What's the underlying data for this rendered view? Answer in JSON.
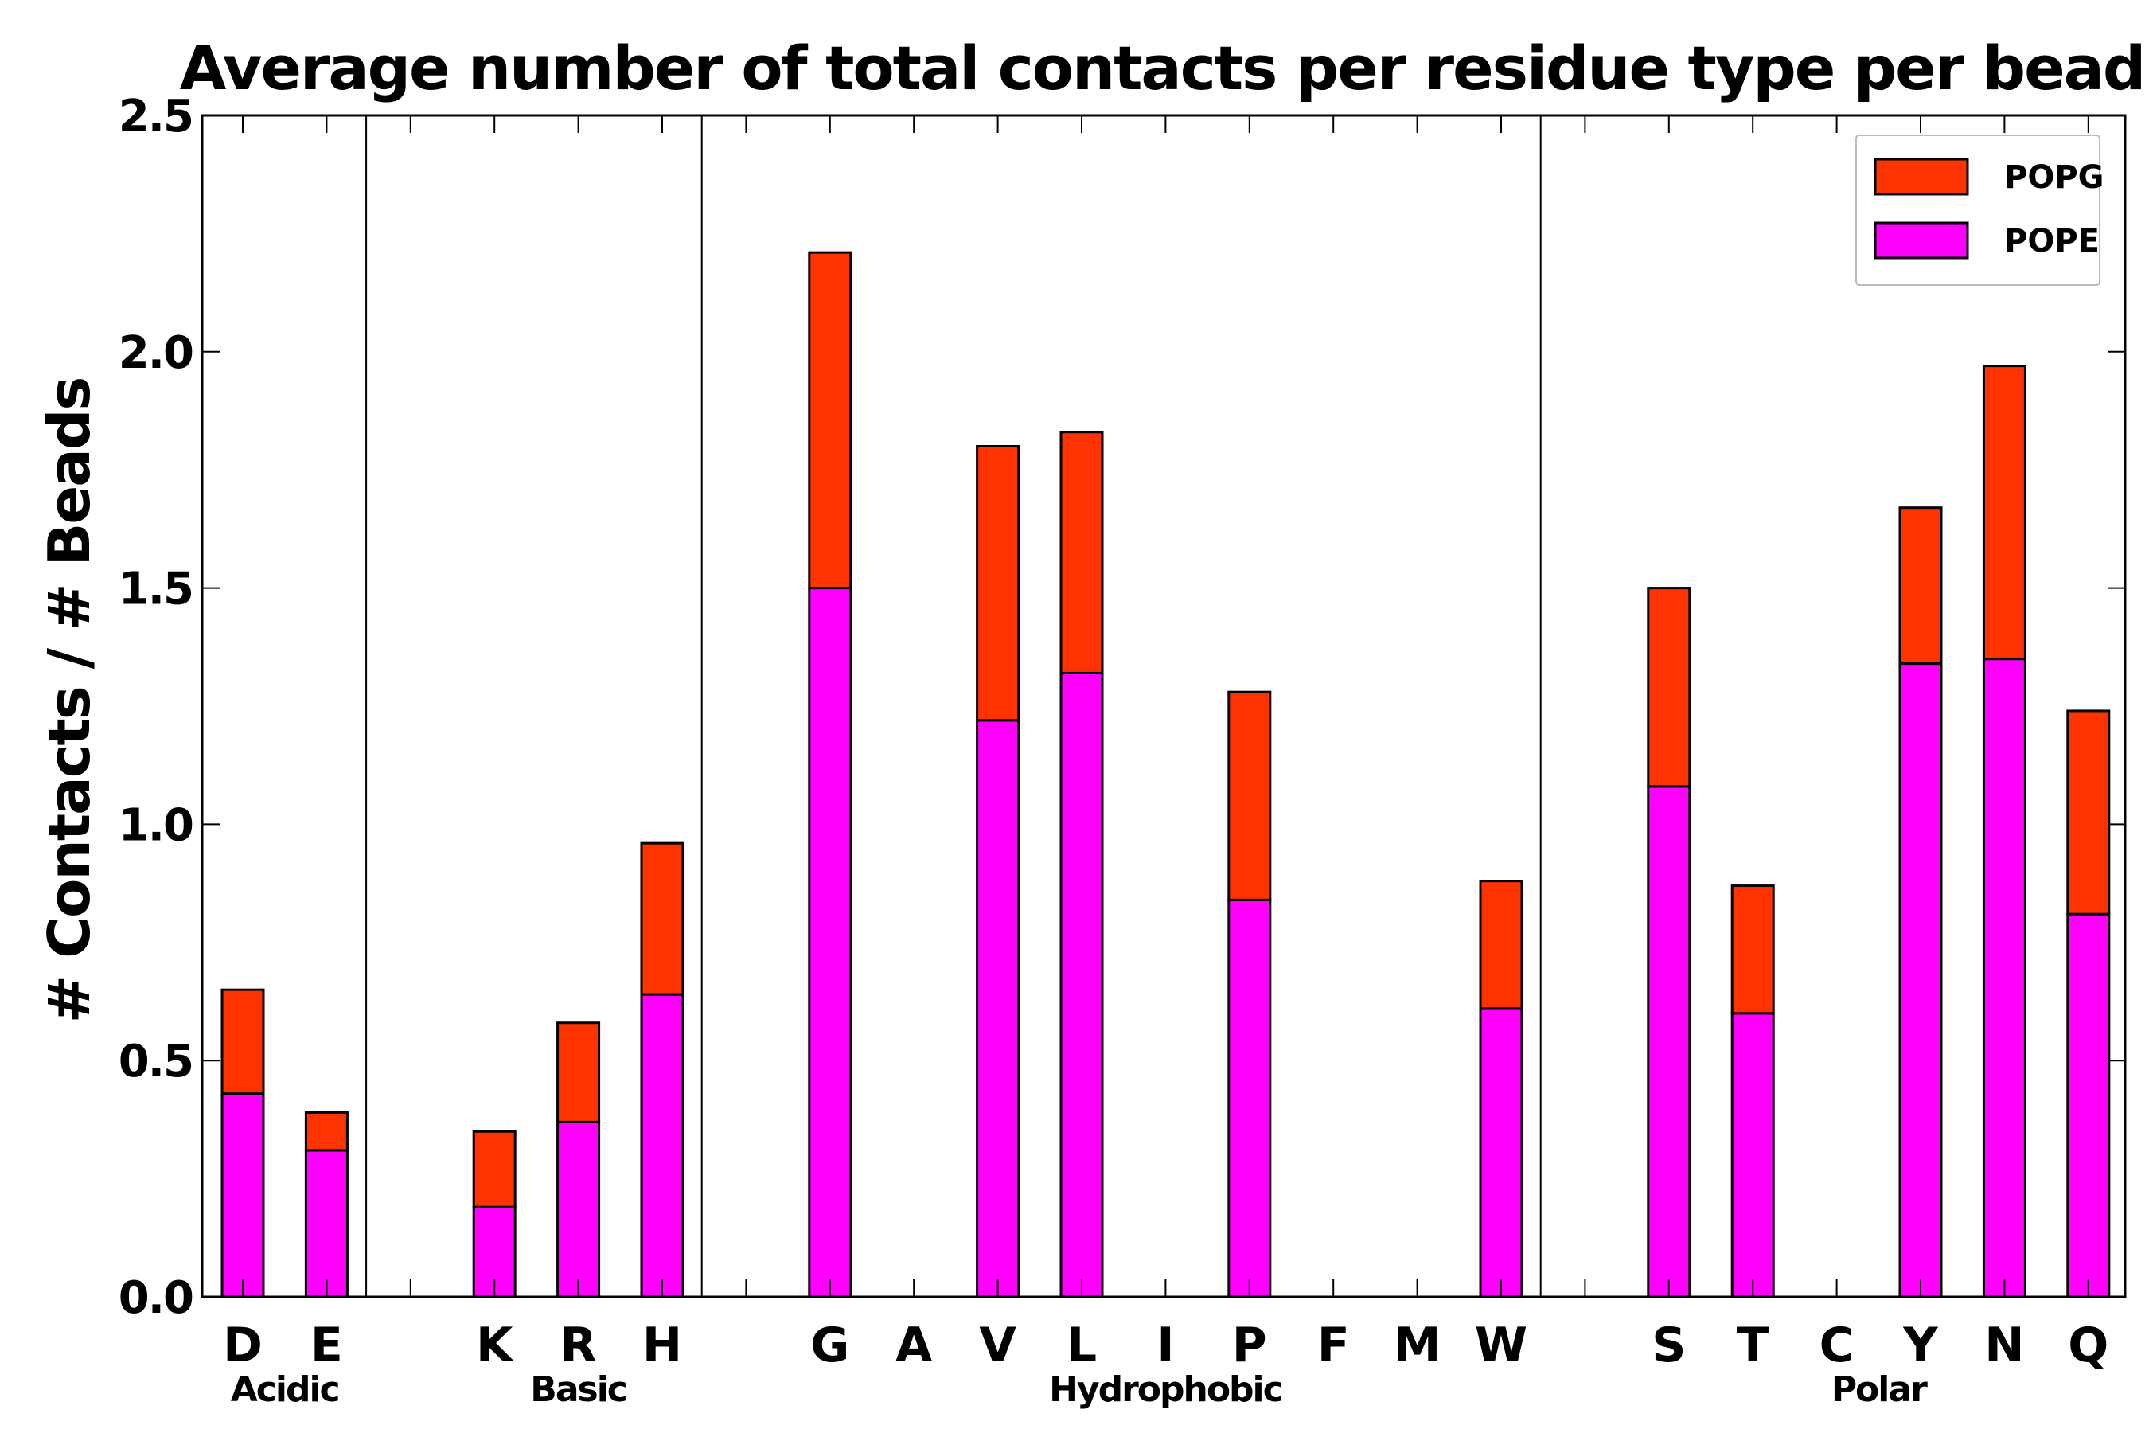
{
  "chart_data": {
    "type": "bar",
    "stacked": true,
    "title": "Average number of total contacts per residue type per bead",
    "xlabel": "",
    "ylabel": "# Contacts / # Beads",
    "ylim": [
      0,
      2.5
    ],
    "yticks": [
      "0.0",
      "0.5",
      "1.0",
      "1.5",
      "2.0",
      "2.5"
    ],
    "ytick_values": [
      0,
      0.5,
      1.0,
      1.5,
      2.0,
      2.5
    ],
    "categories": [
      "D",
      "E",
      "",
      "K",
      "R",
      "H",
      "",
      "G",
      "A",
      "V",
      "L",
      "I",
      "P",
      "F",
      "M",
      "W",
      "",
      "S",
      "T",
      "C",
      "Y",
      "N",
      "Q"
    ],
    "series": [
      {
        "name": "POPE",
        "color": "#ff00ff",
        "values": [
          0.43,
          0.31,
          0,
          0.19,
          0.37,
          0.64,
          0,
          1.5,
          0,
          1.22,
          1.32,
          0,
          0.84,
          0,
          0,
          0.61,
          0,
          1.08,
          0.6,
          0,
          1.34,
          1.35,
          0.81
        ]
      },
      {
        "name": "POPG",
        "color": "#ff3300",
        "values": [
          0.22,
          0.08,
          0,
          0.16,
          0.21,
          0.32,
          0,
          0.71,
          0,
          0.58,
          0.51,
          0,
          0.44,
          0,
          0,
          0.27,
          0,
          0.42,
          0.27,
          0,
          0.33,
          0.62,
          0.43
        ]
      }
    ],
    "groups": [
      {
        "label": "Acidic",
        "start": 0,
        "end": 1
      },
      {
        "label": "Basic",
        "start": 3,
        "end": 5
      },
      {
        "label": "Hydrophobic",
        "start": 7,
        "end": 15
      },
      {
        "label": "Polar",
        "start": 17,
        "end": 22
      }
    ],
    "separators_after_index": [
      2,
      6,
      16
    ],
    "legend": {
      "position": "top-right",
      "entries": [
        {
          "label": "POPG",
          "color": "#ff3300"
        },
        {
          "label": "POPE",
          "color": "#ff00ff"
        }
      ]
    },
    "grid": false
  }
}
